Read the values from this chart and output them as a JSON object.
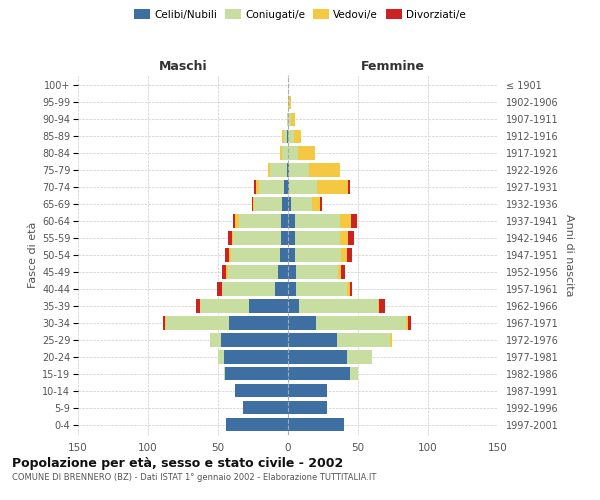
{
  "age_groups": [
    "0-4",
    "5-9",
    "10-14",
    "15-19",
    "20-24",
    "25-29",
    "30-34",
    "35-39",
    "40-44",
    "45-49",
    "50-54",
    "55-59",
    "60-64",
    "65-69",
    "70-74",
    "75-79",
    "80-84",
    "85-89",
    "90-94",
    "95-99",
    "100+"
  ],
  "birth_years": [
    "1997-2001",
    "1992-1996",
    "1987-1991",
    "1982-1986",
    "1977-1981",
    "1972-1976",
    "1967-1971",
    "1962-1966",
    "1957-1961",
    "1952-1956",
    "1947-1951",
    "1942-1946",
    "1937-1941",
    "1932-1936",
    "1927-1931",
    "1922-1926",
    "1917-1921",
    "1912-1916",
    "1907-1911",
    "1902-1906",
    "≤ 1901"
  ],
  "maschi": {
    "celibi": [
      44,
      32,
      38,
      45,
      46,
      48,
      42,
      28,
      9,
      7,
      6,
      5,
      5,
      4,
      3,
      1,
      0,
      1,
      0,
      0,
      0
    ],
    "coniugati": [
      0,
      0,
      0,
      1,
      4,
      8,
      45,
      35,
      38,
      36,
      35,
      34,
      30,
      20,
      18,
      12,
      4,
      2,
      1,
      0,
      0
    ],
    "vedovi": [
      0,
      0,
      0,
      0,
      0,
      0,
      1,
      0,
      0,
      1,
      1,
      1,
      3,
      1,
      2,
      1,
      2,
      1,
      0,
      0,
      0
    ],
    "divorziati": [
      0,
      0,
      0,
      0,
      0,
      0,
      1,
      3,
      4,
      3,
      3,
      3,
      1,
      1,
      1,
      0,
      0,
      0,
      0,
      0,
      0
    ]
  },
  "femmine": {
    "nubili": [
      40,
      28,
      28,
      44,
      42,
      35,
      20,
      8,
      6,
      6,
      5,
      5,
      5,
      2,
      1,
      1,
      0,
      0,
      0,
      0,
      0
    ],
    "coniugate": [
      0,
      0,
      0,
      6,
      18,
      38,
      64,
      56,
      36,
      30,
      33,
      32,
      32,
      15,
      20,
      14,
      7,
      4,
      2,
      1,
      0
    ],
    "vedove": [
      0,
      0,
      0,
      0,
      0,
      1,
      2,
      1,
      2,
      2,
      4,
      6,
      8,
      6,
      22,
      22,
      12,
      5,
      3,
      1,
      0
    ],
    "divorziate": [
      0,
      0,
      0,
      0,
      0,
      0,
      2,
      4,
      2,
      3,
      4,
      4,
      4,
      1,
      1,
      0,
      0,
      0,
      0,
      0,
      0
    ]
  },
  "colors": {
    "celibi": "#3e6fa3",
    "coniugati": "#c8dda0",
    "vedovi": "#f5c842",
    "divorziati": "#cc2222"
  },
  "xlim": 150,
  "title": "Popolazione per età, sesso e stato civile - 2002",
  "subtitle": "COMUNE DI BRENNERO (BZ) - Dati ISTAT 1° gennaio 2002 - Elaborazione TUTTITALIA.IT",
  "ylabel_left": "Fasce di età",
  "ylabel_right": "Anni di nascita",
  "xlabel_left": "Maschi",
  "xlabel_right": "Femmine",
  "bg_color": "#ffffff",
  "grid_color": "#cccccc"
}
